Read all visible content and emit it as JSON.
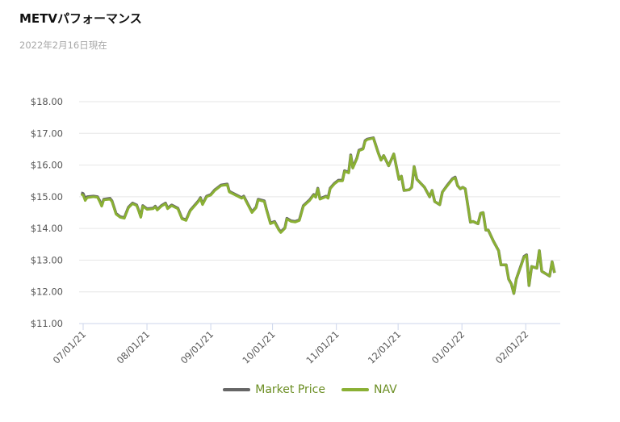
{
  "header": {
    "title": "METVパフォーマンス",
    "subtitle": "2022年2月16日現在"
  },
  "chart_data": {
    "type": "line",
    "title": "METVパフォーマンス",
    "x_unit": "days since 07/01/21",
    "xlim": [
      -2,
      233
    ],
    "ylim": [
      11,
      18
    ],
    "yticks": [
      11,
      12,
      13,
      14,
      15,
      16,
      17,
      18
    ],
    "ytick_labels": [
      "$11.00",
      "$12.00",
      "$13.00",
      "$14.00",
      "$15.00",
      "$16.00",
      "$17.00",
      "$18.00"
    ],
    "xticks": [
      0,
      31,
      62,
      92,
      123,
      153,
      184,
      215
    ],
    "xtick_labels": [
      "07/01/21",
      "08/01/21",
      "09/01/21",
      "10/01/21",
      "11/01/21",
      "12/01/21",
      "01/01/22",
      "02/01/22"
    ],
    "grid": true,
    "legend_position": "bottom-center",
    "colors": {
      "market": "#666666",
      "nav": "#8ab034"
    },
    "x": [
      -1,
      0,
      1,
      2,
      5,
      7,
      8,
      9,
      10,
      13,
      14,
      16,
      18,
      20,
      22,
      24,
      26,
      27,
      28,
      29,
      31,
      34,
      35,
      36,
      38,
      40,
      41,
      43,
      46,
      48,
      50,
      52,
      56,
      57,
      58,
      60,
      62,
      64,
      65,
      67,
      70,
      71,
      74,
      77,
      78,
      80,
      82,
      84,
      85,
      88,
      89,
      91,
      93,
      95,
      96,
      98,
      99,
      101,
      103,
      105,
      107,
      110,
      112,
      113,
      114,
      115,
      118,
      119,
      120,
      122,
      124,
      126,
      127,
      129,
      130,
      131,
      133,
      134,
      136,
      137,
      138,
      141,
      143.5,
      144.7,
      146,
      148.4,
      150.9,
      153.4,
      154.6,
      155.9,
      158.4,
      159.6,
      160.8,
      162.1,
      165.8,
      168.3,
      169.5,
      170.8,
      173.2,
      174.5,
      177,
      179.4,
      180.7,
      181.9,
      183.2,
      184.4,
      185.6,
      188.1,
      189.4,
      191.8,
      193.1,
      194.3,
      195.6,
      196.8,
      199.3,
      201.8,
      203,
      205.5,
      206.7,
      208,
      209.2,
      210.4,
      212.9,
      214.2,
      215.4,
      216.6,
      217.9,
      220.4,
      221.6,
      222.8,
      225.3,
      226.6,
      227.8,
      229
    ],
    "series": [
      {
        "name": "Market Price",
        "values": [
          15.12,
          15.1,
          14.95,
          15.0,
          15.02,
          15.0,
          14.88,
          14.72,
          14.92,
          14.95,
          14.87,
          14.47,
          14.37,
          14.34,
          14.67,
          14.8,
          14.74,
          14.57,
          14.37,
          14.72,
          14.62,
          14.64,
          14.7,
          14.6,
          14.72,
          14.8,
          14.64,
          14.74,
          14.64,
          14.32,
          14.27,
          14.57,
          14.87,
          14.97,
          14.77,
          15.02,
          15.07,
          15.22,
          15.27,
          15.37,
          15.4,
          15.17,
          15.07,
          14.97,
          15.02,
          14.77,
          14.52,
          14.67,
          14.92,
          14.87,
          14.62,
          14.17,
          14.22,
          13.97,
          13.89,
          14.02,
          14.32,
          14.24,
          14.22,
          14.27,
          14.72,
          14.9,
          15.07,
          15.0,
          15.27,
          14.94,
          15.02,
          14.97,
          15.27,
          15.42,
          15.52,
          15.52,
          15.82,
          15.77,
          16.32,
          15.92,
          16.22,
          16.47,
          16.52,
          16.77,
          16.82,
          16.86,
          16.36,
          16.16,
          16.3,
          15.98,
          16.35,
          15.55,
          15.65,
          15.2,
          15.22,
          15.3,
          15.95,
          15.55,
          15.3,
          15.0,
          15.2,
          14.85,
          14.75,
          15.15,
          15.37,
          15.57,
          15.62,
          15.35,
          15.25,
          15.3,
          15.25,
          14.2,
          14.22,
          14.15,
          14.48,
          14.5,
          13.95,
          13.95,
          13.6,
          13.3,
          12.85,
          12.85,
          12.4,
          12.25,
          11.95,
          12.4,
          12.87,
          13.12,
          13.17,
          12.2,
          12.8,
          12.75,
          13.3,
          12.65,
          12.55,
          12.5,
          12.95,
          12.6
        ]
      },
      {
        "name": "NAV",
        "values": [
          15.08,
          15.05,
          14.88,
          14.97,
          15.0,
          14.98,
          14.85,
          14.7,
          14.9,
          14.92,
          14.85,
          14.45,
          14.35,
          14.32,
          14.65,
          14.78,
          14.72,
          14.55,
          14.35,
          14.7,
          14.6,
          14.62,
          14.68,
          14.58,
          14.7,
          14.78,
          14.62,
          14.72,
          14.62,
          14.3,
          14.25,
          14.55,
          14.85,
          14.95,
          14.75,
          15.0,
          15.05,
          15.2,
          15.25,
          15.35,
          15.38,
          15.15,
          15.05,
          14.95,
          15.0,
          14.75,
          14.5,
          14.65,
          14.9,
          14.85,
          14.6,
          14.15,
          14.2,
          13.95,
          13.87,
          14.0,
          14.3,
          14.22,
          14.2,
          14.25,
          14.7,
          14.88,
          15.05,
          14.98,
          15.25,
          14.92,
          15.0,
          14.95,
          15.25,
          15.4,
          15.5,
          15.5,
          15.8,
          15.75,
          16.3,
          15.9,
          16.2,
          16.45,
          16.5,
          16.75,
          16.8,
          16.85,
          16.35,
          16.15,
          16.3,
          15.98,
          16.35,
          15.55,
          15.65,
          15.2,
          15.22,
          15.3,
          15.95,
          15.55,
          15.3,
          15.0,
          15.2,
          14.85,
          14.75,
          15.15,
          15.35,
          15.55,
          15.6,
          15.35,
          15.25,
          15.3,
          15.25,
          14.2,
          14.22,
          14.15,
          14.48,
          14.5,
          13.95,
          13.95,
          13.6,
          13.3,
          12.85,
          12.85,
          12.4,
          12.25,
          11.95,
          12.4,
          12.85,
          13.1,
          13.15,
          12.2,
          12.8,
          12.75,
          13.3,
          12.65,
          12.55,
          12.5,
          12.95,
          12.6
        ]
      }
    ]
  }
}
